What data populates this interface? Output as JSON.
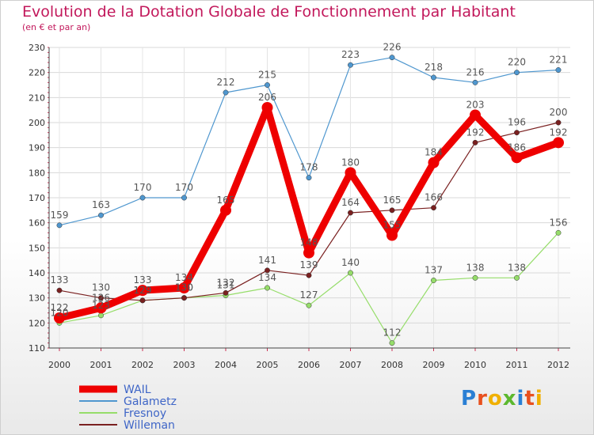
{
  "title": "Evolution de la Dotation Globale de Fonctionnement par Habitant",
  "subtitle": "(en € et par an)",
  "logo": {
    "text": "Proxiti",
    "letters": [
      {
        "ch": "P",
        "color": "#2a7fd4"
      },
      {
        "ch": "r",
        "color": "#e8501e"
      },
      {
        "ch": "o",
        "color": "#f0b000"
      },
      {
        "ch": "x",
        "color": "#5cb82e"
      },
      {
        "ch": "i",
        "color": "#2a7fd4"
      },
      {
        "ch": "t",
        "color": "#e8501e"
      },
      {
        "ch": "i",
        "color": "#f0b000"
      }
    ]
  },
  "chart_data": {
    "type": "line",
    "title": "Evolution de la Dotation Globale de Fonctionnement par Habitant",
    "subtitle": "(en € et par an)",
    "xlabel": "",
    "ylabel": "",
    "categories": [
      "2000",
      "2001",
      "2002",
      "2003",
      "2004",
      "2005",
      "2006",
      "2007",
      "2008",
      "2009",
      "2010",
      "2011",
      "2012"
    ],
    "ylim": [
      110,
      230
    ],
    "yticks": [
      110,
      120,
      130,
      140,
      150,
      160,
      170,
      180,
      190,
      200,
      210,
      220,
      230
    ],
    "grid": true,
    "legend_position": "bottom-left",
    "series": [
      {
        "name": "WAIL",
        "color": "#ee0000",
        "values": [
          122,
          126,
          133,
          134,
          165,
          206,
          148,
          180,
          155,
          184,
          203,
          186,
          192
        ]
      },
      {
        "name": "Galametz",
        "color": "#4f97cf",
        "values": [
          159,
          163,
          170,
          170,
          212,
          215,
          178,
          223,
          226,
          218,
          216,
          220,
          221
        ]
      },
      {
        "name": "Fresnoy",
        "color": "#96dd6a",
        "values": [
          120,
          123,
          129,
          130,
          131,
          134,
          127,
          140,
          112,
          137,
          138,
          138,
          156
        ]
      },
      {
        "name": "Willeman",
        "color": "#7a2020",
        "values": [
          133,
          130,
          129,
          130,
          132,
          141,
          139,
          164,
          165,
          166,
          192,
          196,
          200
        ]
      }
    ]
  }
}
